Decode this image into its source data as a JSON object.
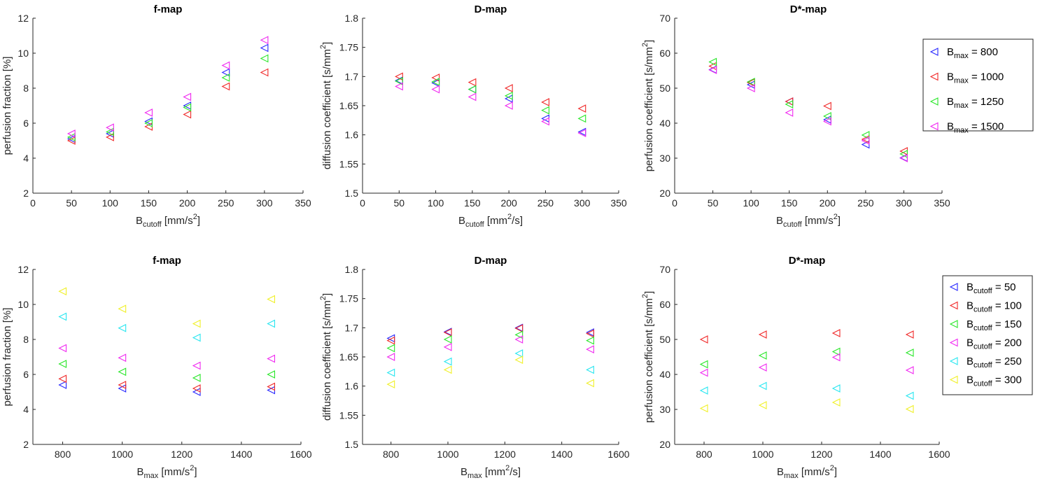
{
  "colors": {
    "blue": "#2727FF",
    "red": "#F02828",
    "green": "#28E628",
    "magenta": "#F028F0",
    "cyan": "#28E6F0",
    "yellow": "#F0F028"
  },
  "legends": [
    {
      "variable": "B",
      "subscript": "max",
      "entries": [
        {
          "value": "800",
          "color": "blue"
        },
        {
          "value": "1000",
          "color": "red"
        },
        {
          "value": "1250",
          "color": "green"
        },
        {
          "value": "1500",
          "color": "magenta"
        }
      ]
    },
    {
      "variable": "B",
      "subscript": "cutoff",
      "entries": [
        {
          "value": "50",
          "color": "blue"
        },
        {
          "value": "100",
          "color": "red"
        },
        {
          "value": "150",
          "color": "green"
        },
        {
          "value": "200",
          "color": "magenta"
        },
        {
          "value": "250",
          "color": "cyan"
        },
        {
          "value": "300",
          "color": "yellow"
        }
      ]
    }
  ],
  "chart_data": [
    {
      "id": "top-f",
      "type": "scatter",
      "title": "f-map",
      "xlabel": {
        "main": "B",
        "sub": "cutoff",
        "unit": "mm/s",
        "sup": "2",
        "after": ""
      },
      "ylabel": {
        "main": "perfusion fraction [%]",
        "sup": "",
        "after": ""
      },
      "xlim": [
        0,
        350
      ],
      "xticks": [
        0,
        50,
        100,
        150,
        200,
        250,
        300,
        350
      ],
      "ylim": [
        2,
        12
      ],
      "yticks": [
        2,
        4,
        6,
        8,
        10,
        12
      ],
      "ydecimals": 0,
      "x": [
        50,
        100,
        150,
        200,
        250,
        300
      ],
      "series": [
        {
          "name": "Bmax = 800",
          "color": "blue",
          "values": [
            5.1,
            5.4,
            6.1,
            7.0,
            8.9,
            10.3
          ]
        },
        {
          "name": "Bmax = 1000",
          "color": "red",
          "values": [
            5.0,
            5.2,
            5.8,
            6.5,
            8.1,
            8.9
          ]
        },
        {
          "name": "Bmax = 1250",
          "color": "green",
          "values": [
            5.2,
            5.5,
            6.0,
            6.9,
            8.6,
            9.7
          ]
        },
        {
          "name": "Bmax = 1500",
          "color": "magenta",
          "values": [
            5.4,
            5.75,
            6.6,
            7.5,
            9.3,
            10.75
          ]
        }
      ]
    },
    {
      "id": "top-d",
      "type": "scatter",
      "title": "D-map",
      "xlabel": {
        "main": "B",
        "sub": "cutoff",
        "unit": "mm",
        "sup": "2",
        "after": "/s"
      },
      "ylabel": {
        "main": "diffusion coefficient [s/mm",
        "sup": "2",
        "after": "]"
      },
      "xlim": [
        0,
        350
      ],
      "xticks": [
        0,
        50,
        100,
        150,
        200,
        250,
        300,
        350
      ],
      "ylim": [
        1.5,
        1.8
      ],
      "yticks": [
        1.5,
        1.55,
        1.6,
        1.65,
        1.7,
        1.75,
        1.8
      ],
      "ydecimals": 2,
      "x": [
        50,
        100,
        150,
        200,
        250,
        300
      ],
      "series": [
        {
          "name": "Bmax = 800",
          "color": "blue",
          "values": [
            1.693,
            1.689,
            1.678,
            1.662,
            1.628,
            1.605
          ]
        },
        {
          "name": "Bmax = 1000",
          "color": "red",
          "values": [
            1.7,
            1.698,
            1.69,
            1.68,
            1.656,
            1.645
          ]
        },
        {
          "name": "Bmax = 1250",
          "color": "green",
          "values": [
            1.692,
            1.691,
            1.678,
            1.667,
            1.642,
            1.628
          ]
        },
        {
          "name": "Bmax = 1500",
          "color": "magenta",
          "values": [
            1.683,
            1.678,
            1.665,
            1.65,
            1.623,
            1.603
          ]
        }
      ]
    },
    {
      "id": "top-dstar",
      "type": "scatter",
      "title": "D*-map",
      "xlabel": {
        "main": "B",
        "sub": "cutoff",
        "unit": "mm/s",
        "sup": "2",
        "after": ""
      },
      "ylabel": {
        "main": "perfusion coefficient [s/mm",
        "sup": "2",
        "after": "]"
      },
      "xlim": [
        0,
        350
      ],
      "xticks": [
        0,
        50,
        100,
        150,
        200,
        250,
        300,
        350
      ],
      "ylim": [
        20,
        70
      ],
      "yticks": [
        20,
        30,
        40,
        50,
        60,
        70
      ],
      "ydecimals": 0,
      "x": [
        50,
        100,
        150,
        200,
        250,
        300
      ],
      "series": [
        {
          "name": "Bmax = 800",
          "color": "blue",
          "values": [
            55.3,
            51.0,
            46.2,
            41.0,
            33.9,
            30.1
          ]
        },
        {
          "name": "Bmax = 1000",
          "color": "red",
          "values": [
            56.3,
            51.6,
            46.2,
            44.9,
            35.4,
            32.0
          ]
        },
        {
          "name": "Bmax = 1250",
          "color": "green",
          "values": [
            57.5,
            51.8,
            45.4,
            42.0,
            36.6,
            31.2
          ]
        },
        {
          "name": "Bmax = 1500",
          "color": "magenta",
          "values": [
            55.2,
            50.0,
            43.0,
            40.5,
            35.0,
            30.0
          ]
        }
      ]
    },
    {
      "id": "bottom-f",
      "type": "scatter",
      "title": "f-map",
      "xlabel": {
        "main": "B",
        "sub": "max",
        "unit": "mm/s",
        "sup": "2",
        "after": ""
      },
      "ylabel": {
        "main": "perfusion fraction [%]",
        "sup": "",
        "after": ""
      },
      "xlim": [
        700,
        1600
      ],
      "xticks": [
        800,
        1000,
        1200,
        1400,
        1600
      ],
      "ylim": [
        2,
        12
      ],
      "yticks": [
        2,
        4,
        6,
        8,
        10,
        12
      ],
      "ydecimals": 0,
      "x": [
        800,
        1000,
        1250,
        1500
      ],
      "series": [
        {
          "name": "Bcutoff = 50",
          "color": "blue",
          "values": [
            5.4,
            5.2,
            5.0,
            5.1
          ]
        },
        {
          "name": "Bcutoff = 100",
          "color": "red",
          "values": [
            5.75,
            5.4,
            5.2,
            5.3
          ]
        },
        {
          "name": "Bcutoff = 150",
          "color": "green",
          "values": [
            6.6,
            6.15,
            5.8,
            6.0
          ]
        },
        {
          "name": "Bcutoff = 200",
          "color": "magenta",
          "values": [
            7.5,
            6.95,
            6.5,
            6.9
          ]
        },
        {
          "name": "Bcutoff = 250",
          "color": "cyan",
          "values": [
            9.3,
            8.65,
            8.1,
            8.9
          ]
        },
        {
          "name": "Bcutoff = 300",
          "color": "yellow",
          "values": [
            10.75,
            9.75,
            8.9,
            10.3
          ]
        }
      ]
    },
    {
      "id": "bottom-d",
      "type": "scatter",
      "title": "D-map",
      "xlabel": {
        "main": "B",
        "sub": "max",
        "unit": "mm",
        "sup": "2",
        "after": "/s"
      },
      "ylabel": {
        "main": "diffusion coefficient [s/mm",
        "sup": "2",
        "after": "]"
      },
      "xlim": [
        700,
        1600
      ],
      "xticks": [
        800,
        1000,
        1200,
        1400,
        1600
      ],
      "ylim": [
        1.5,
        1.8
      ],
      "yticks": [
        1.5,
        1.55,
        1.6,
        1.65,
        1.7,
        1.75,
        1.8
      ],
      "ydecimals": 2,
      "x": [
        800,
        1000,
        1250,
        1500
      ],
      "series": [
        {
          "name": "Bcutoff = 50",
          "color": "blue",
          "values": [
            1.682,
            1.693,
            1.7,
            1.692
          ]
        },
        {
          "name": "Bcutoff = 100",
          "color": "red",
          "values": [
            1.678,
            1.692,
            1.699,
            1.69
          ]
        },
        {
          "name": "Bcutoff = 150",
          "color": "green",
          "values": [
            1.665,
            1.68,
            1.688,
            1.678
          ]
        },
        {
          "name": "Bcutoff = 200",
          "color": "magenta",
          "values": [
            1.65,
            1.667,
            1.68,
            1.663
          ]
        },
        {
          "name": "Bcutoff = 250",
          "color": "cyan",
          "values": [
            1.623,
            1.642,
            1.656,
            1.628
          ]
        },
        {
          "name": "Bcutoff = 300",
          "color": "yellow",
          "values": [
            1.603,
            1.628,
            1.645,
            1.605
          ]
        }
      ]
    },
    {
      "id": "bottom-dstar",
      "type": "scatter",
      "title": "D*-map",
      "xlabel": {
        "main": "B",
        "sub": "max",
        "unit": "mm/s",
        "sup": "2",
        "after": ""
      },
      "ylabel": {
        "main": "perfusion coefficient [s/mm",
        "sup": "2",
        "after": "]"
      },
      "xlim": [
        700,
        1600
      ],
      "xticks": [
        800,
        1000,
        1200,
        1400,
        1600
      ],
      "ylim": [
        20,
        70
      ],
      "yticks": [
        20,
        30,
        40,
        50,
        60,
        70
      ],
      "ydecimals": 0,
      "x": [
        800,
        1000,
        1250,
        1500
      ],
      "series": [
        {
          "name": "Bcutoff = 50",
          "color": "blue",
          "values": [
            null,
            null,
            null,
            null
          ]
        },
        {
          "name": "Bcutoff = 100",
          "color": "red",
          "values": [
            50.0,
            51.4,
            51.8,
            51.4
          ]
        },
        {
          "name": "Bcutoff = 150",
          "color": "green",
          "values": [
            42.9,
            45.4,
            46.5,
            46.2
          ]
        },
        {
          "name": "Bcutoff = 200",
          "color": "magenta",
          "values": [
            40.5,
            42.0,
            44.9,
            41.2
          ]
        },
        {
          "name": "Bcutoff = 250",
          "color": "cyan",
          "values": [
            35.4,
            36.7,
            36.0,
            33.9
          ]
        },
        {
          "name": "Bcutoff = 300",
          "color": "yellow",
          "values": [
            30.3,
            31.2,
            32.0,
            30.1
          ]
        }
      ]
    }
  ]
}
